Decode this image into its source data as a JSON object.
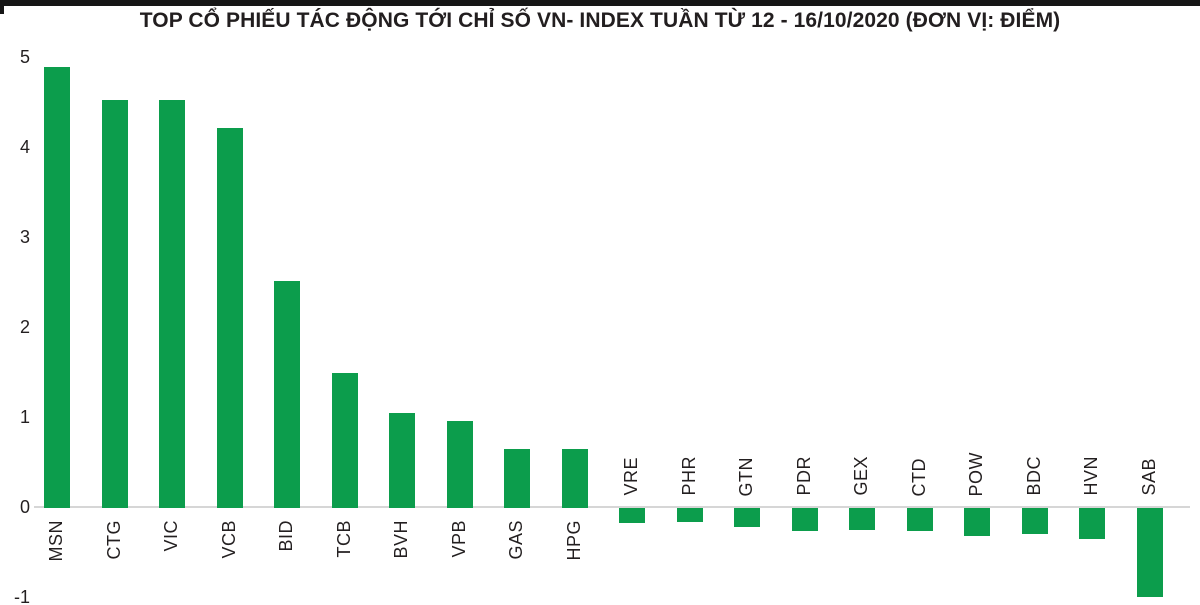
{
  "page": {
    "kind": "bar-chart-panel"
  },
  "colors": {
    "bar_green": "#0c9d4c",
    "axis_line": "#d6d6d6",
    "text": "#231f20",
    "top_border": "#161616",
    "background": "#ffffff"
  },
  "chart_data": {
    "type": "bar",
    "title": "TOP CỔ PHIẾU TÁC ĐỘNG TỚI CHỈ SỐ VN- INDEX TUẦN TỪ 12 - 16/10/2020 (ĐƠN VỊ: ĐIỂM)",
    "unit_label": "Điểm",
    "categories": [
      "MSN",
      "CTG",
      "VIC",
      "VCB",
      "BID",
      "TCB",
      "BVH",
      "VPB",
      "GAS",
      "HPG",
      "VRE",
      "PHR",
      "GTN",
      "PDR",
      "GEX",
      "CTD",
      "POW",
      "BDC",
      "HVN",
      "SAB"
    ],
    "values": [
      4.9,
      4.53,
      4.53,
      4.22,
      2.52,
      1.5,
      1.06,
      0.97,
      0.66,
      0.66,
      -0.17,
      -0.16,
      -0.21,
      -0.25,
      -0.24,
      -0.25,
      -0.31,
      -0.29,
      -0.34,
      -0.99
    ],
    "xlabel": "",
    "ylabel": "",
    "ylim": [
      -1,
      5
    ],
    "yticks": [
      5,
      4,
      3,
      2,
      1,
      0,
      -1
    ],
    "grid": false,
    "legend": "none",
    "bar_color": "#0c9d4c",
    "category_label_rotation_deg": 90,
    "positive_labels_position": "below-axis",
    "negative_labels_position": "above-axis"
  }
}
